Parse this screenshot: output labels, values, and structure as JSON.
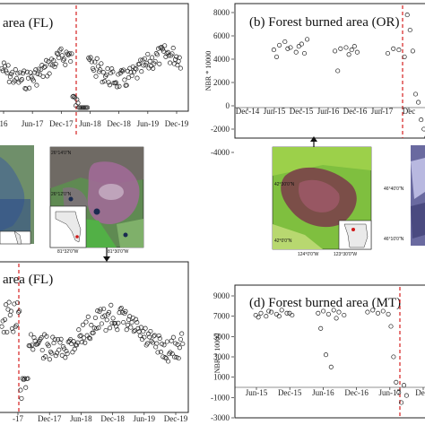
{
  "chart_data": [
    {
      "id": "fl_top",
      "type": "scatter",
      "title": "area (FL)",
      "x_ticks": [
        "16",
        "Jun-17",
        "Dec-17",
        "Jun-18",
        "Dec-18",
        "Jun-19",
        "Dec-19"
      ],
      "grid": false,
      "disturbance_line": "dashed red vertical line near Jun-18"
    },
    {
      "id": "or",
      "type": "scatter",
      "title": "(b) Forest burned area (OR)",
      "ylabel": "NBR * 10000",
      "y_ticks": [
        "8000",
        "6000",
        "4000",
        "2000",
        "0",
        "-2000",
        "-4000"
      ],
      "ylim": [
        -4000,
        8000
      ],
      "x_ticks": [
        "Dec-14",
        "Jun-15",
        "Dec-15",
        "Jun-16",
        "Dec-16",
        "Jun-17",
        "Dec"
      ],
      "grid": false,
      "series": [
        {
          "name": "",
          "x": [
            0.7,
            0.8,
            0.9,
            1.0,
            1.1,
            1.2,
            1.3,
            0.75,
            0.95,
            1.15,
            1.25
          ],
          "y": [
            4800,
            5200,
            5500,
            5000,
            4600,
            5300,
            5700,
            4200,
            4900,
            5100,
            4500
          ]
        },
        {
          "name": "",
          "x": [
            1.8,
            1.9,
            2.0,
            2.1,
            2.2,
            1.85,
            2.05,
            2.15
          ],
          "y": [
            4700,
            4900,
            5000,
            4800,
            4600,
            3000,
            4400,
            5100
          ]
        },
        {
          "name": "",
          "x": [
            2.75,
            2.85,
            2.95,
            3.05,
            3.1,
            3.15,
            3.2,
            3.25,
            3.3,
            3.35,
            3.4,
            3.45
          ],
          "y": [
            4500,
            4900,
            4800,
            4200,
            7800,
            6500,
            4700,
            1000,
            300,
            -1200,
            -2000,
            -2700
          ]
        }
      ]
    },
    {
      "id": "fl_bottom",
      "type": "scatter",
      "title": "area (FL)",
      "x_ticks": [
        "-17",
        "Dec-17",
        "Jun-18",
        "Dec-18",
        "Jun-19",
        "Dec-19"
      ],
      "grid": false
    },
    {
      "id": "mt",
      "type": "scatter",
      "title": "(d) Forest burned area (MT)",
      "ylabel": "NBR * 10000",
      "y_ticks": [
        "9000",
        "7000",
        "5000",
        "3000",
        "1000",
        "-1000",
        "-3000"
      ],
      "ylim": [
        -3000,
        9000
      ],
      "x_ticks": [
        "Jun-15",
        "Dec-15",
        "Jun-16",
        "Dec-16",
        "Jun-17",
        "Dec-"
      ],
      "grid": false,
      "series": [
        {
          "name": "",
          "x": [
            0.4,
            0.5,
            0.6,
            0.7,
            0.8,
            0.9,
            1.0,
            1.1,
            0.45,
            0.65,
            0.85,
            1.05
          ],
          "y": [
            7100,
            7300,
            7000,
            7400,
            7200,
            7600,
            7300,
            7100,
            6900,
            7500,
            7000,
            7300
          ]
        },
        {
          "name": "",
          "x": [
            1.6,
            1.7,
            1.8,
            1.9,
            2.0,
            2.1,
            1.65,
            1.75,
            1.85,
            1.95
          ],
          "y": [
            7300,
            7500,
            7200,
            7600,
            7400,
            7100,
            5800,
            3200,
            2000,
            6800
          ]
        },
        {
          "name": "",
          "x": [
            2.55,
            2.65,
            2.75,
            2.85,
            2.95,
            3.0,
            3.05,
            3.1,
            3.15,
            3.2,
            3.25,
            3.3
          ],
          "y": [
            7400,
            7600,
            7300,
            7500,
            7200,
            6000,
            3000,
            500,
            -500,
            -1500,
            200,
            -800
          ]
        }
      ]
    }
  ],
  "maps": {
    "fl": {
      "lat_top": "26°14'0\"N",
      "lat_mid": "26°12'0\"N",
      "lon": "81°32'0\"W",
      "lon2": "81°30'0\"W"
    },
    "or": {
      "lat_top": "42°30'0\"N",
      "lat_bot": "42°0'0\"N",
      "lon": "124°0'0\"W",
      "lon2": "123°30'0\"W"
    },
    "mt": {
      "lat_top": "46°40'0\"N",
      "lat_bot": "46°10'0\"N"
    }
  }
}
